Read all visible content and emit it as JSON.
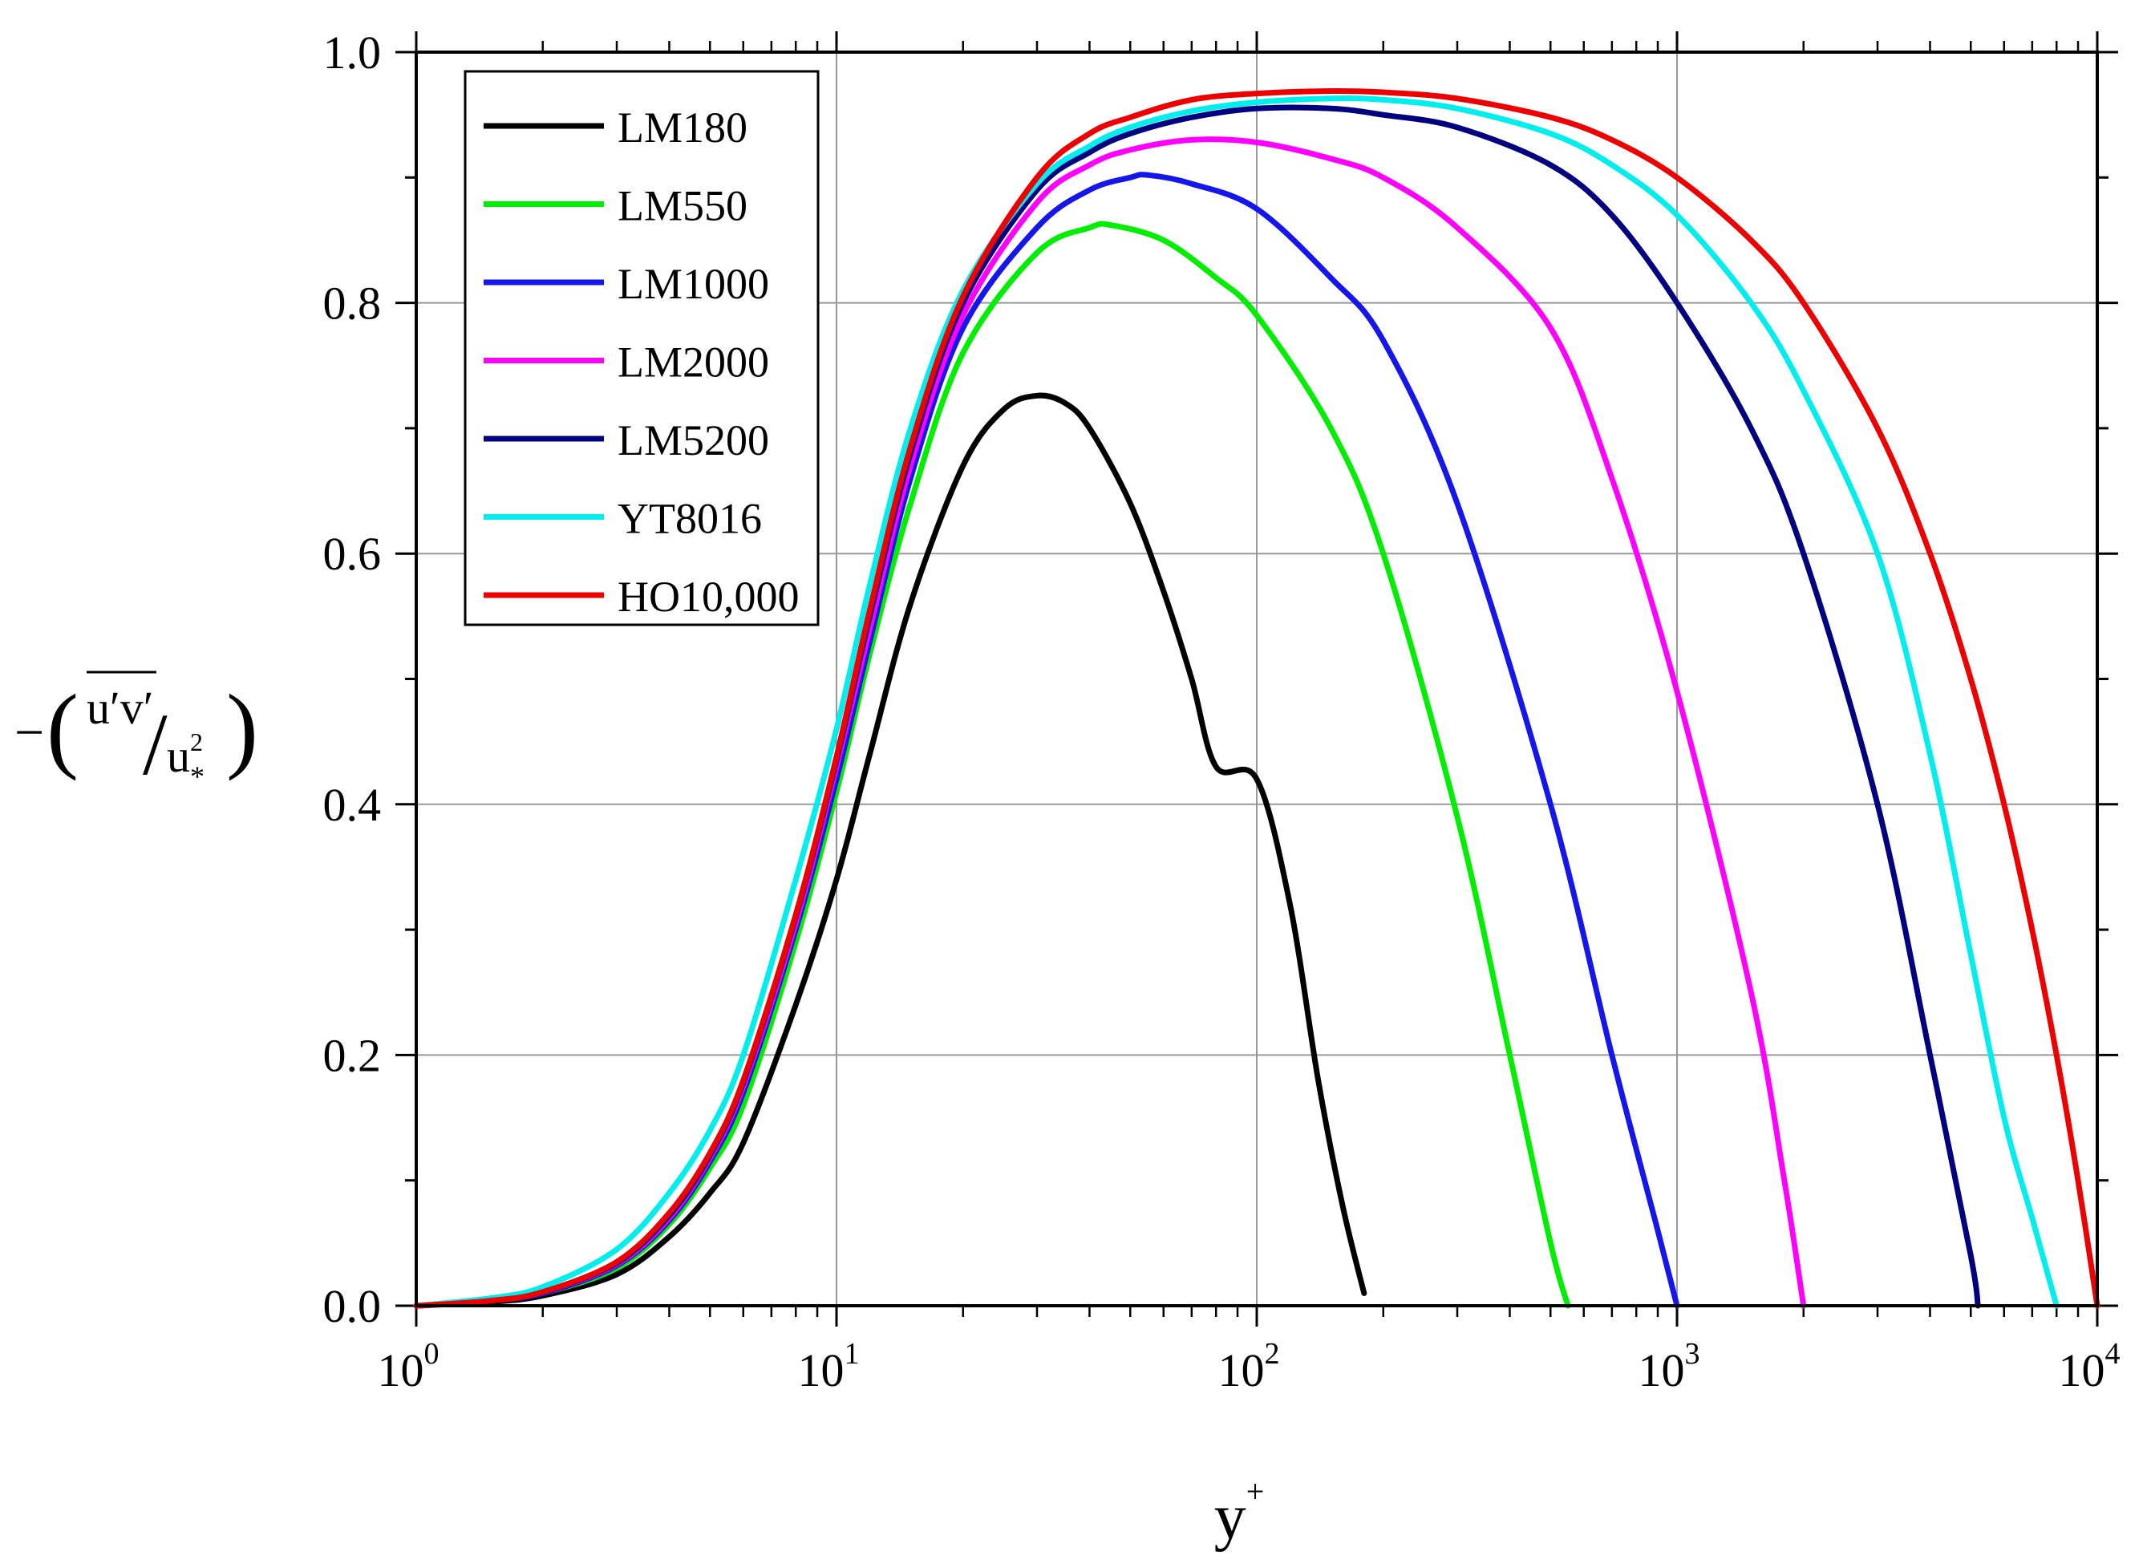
{
  "chart_data": {
    "type": "line",
    "title": "",
    "xlabel": "y",
    "xlabel_superscript": "+",
    "ylabel": {
      "prefix": "−",
      "numerator": "u′v′",
      "denominator": "u",
      "denominator_superscript": "2",
      "denominator_subscript": "*"
    },
    "xscale": "log",
    "xlim": [
      1,
      10000
    ],
    "ylim": [
      0,
      1.0
    ],
    "grid": true,
    "legend_position": "top-left",
    "x_ticks": [
      {
        "base": "10",
        "exp": "0"
      },
      {
        "base": "10",
        "exp": "1"
      },
      {
        "base": "10",
        "exp": "2"
      },
      {
        "base": "10",
        "exp": "3"
      },
      {
        "base": "10",
        "exp": "4"
      }
    ],
    "y_ticks": [
      "0.0",
      "0.2",
      "0.4",
      "0.6",
      "0.8",
      "1.0"
    ],
    "series": [
      {
        "name": "LM180",
        "color": "#000000",
        "x": [
          1,
          1.5,
          2,
          3,
          4,
          5,
          6,
          8,
          10,
          12,
          15,
          20,
          25,
          30,
          35,
          40,
          50,
          60,
          70,
          80,
          100,
          120,
          140,
          160,
          180
        ],
        "y": [
          0.0,
          0.003,
          0.008,
          0.025,
          0.055,
          0.09,
          0.13,
          0.24,
          0.34,
          0.44,
          0.56,
          0.67,
          0.715,
          0.726,
          0.72,
          0.7,
          0.64,
          0.57,
          0.5,
          0.43,
          0.42,
          0.32,
          0.18,
          0.08,
          0.01
        ]
      },
      {
        "name": "LM550",
        "color": "#00ee00",
        "x": [
          1,
          1.5,
          2,
          3,
          4,
          5,
          6,
          8,
          10,
          12,
          15,
          20,
          30,
          40,
          45,
          60,
          80,
          100,
          150,
          200,
          300,
          400,
          500,
          550
        ],
        "y": [
          0.0,
          0.004,
          0.01,
          0.03,
          0.065,
          0.11,
          0.16,
          0.29,
          0.41,
          0.52,
          0.64,
          0.76,
          0.84,
          0.86,
          0.862,
          0.85,
          0.82,
          0.79,
          0.7,
          0.6,
          0.39,
          0.2,
          0.05,
          0.0
        ]
      },
      {
        "name": "LM1000",
        "color": "#1515ee",
        "x": [
          1,
          1.5,
          2,
          3,
          4,
          5,
          6,
          8,
          10,
          12,
          15,
          20,
          30,
          40,
          50,
          55,
          70,
          100,
          150,
          200,
          300,
          500,
          700,
          900,
          1000
        ],
        "y": [
          0.0,
          0.004,
          0.01,
          0.032,
          0.068,
          0.115,
          0.17,
          0.3,
          0.42,
          0.53,
          0.66,
          0.78,
          0.86,
          0.89,
          0.9,
          0.902,
          0.895,
          0.875,
          0.82,
          0.77,
          0.64,
          0.4,
          0.2,
          0.06,
          0.0
        ]
      },
      {
        "name": "LM2000",
        "color": "#ff00ff",
        "x": [
          1,
          1.5,
          2,
          3,
          4,
          5,
          6,
          8,
          10,
          12,
          15,
          20,
          30,
          40,
          50,
          70,
          100,
          150,
          200,
          300,
          500,
          700,
          1000,
          1500,
          1800,
          2000
        ],
        "y": [
          0.0,
          0.004,
          0.011,
          0.033,
          0.07,
          0.118,
          0.175,
          0.305,
          0.43,
          0.54,
          0.67,
          0.79,
          0.88,
          0.91,
          0.922,
          0.93,
          0.928,
          0.915,
          0.9,
          0.86,
          0.78,
          0.66,
          0.49,
          0.25,
          0.1,
          0.0
        ]
      },
      {
        "name": "LM5200",
        "color": "#000080",
        "x": [
          1,
          1.5,
          2,
          3,
          4,
          5,
          6,
          8,
          10,
          12,
          15,
          20,
          30,
          40,
          50,
          70,
          100,
          150,
          200,
          300,
          500,
          700,
          1000,
          1500,
          2000,
          3000,
          4000,
          5000,
          5200
        ],
        "y": [
          0.0,
          0.004,
          0.011,
          0.034,
          0.072,
          0.12,
          0.178,
          0.31,
          0.435,
          0.55,
          0.68,
          0.8,
          0.89,
          0.92,
          0.935,
          0.948,
          0.955,
          0.955,
          0.95,
          0.94,
          0.91,
          0.87,
          0.8,
          0.7,
          0.6,
          0.4,
          0.2,
          0.04,
          0.0
        ]
      },
      {
        "name": "YT8016",
        "color": "#00eeee",
        "x": [
          1,
          1.5,
          2,
          3,
          4,
          5,
          6,
          8,
          10,
          12,
          15,
          20,
          30,
          40,
          50,
          70,
          100,
          150,
          200,
          300,
          500,
          700,
          1000,
          1500,
          2000,
          3000,
          4000,
          5000,
          6000,
          7000,
          8000
        ],
        "y": [
          0.0,
          0.006,
          0.015,
          0.045,
          0.09,
          0.14,
          0.2,
          0.34,
          0.46,
          0.575,
          0.7,
          0.81,
          0.895,
          0.925,
          0.94,
          0.953,
          0.96,
          0.963,
          0.962,
          0.955,
          0.935,
          0.91,
          0.87,
          0.8,
          0.73,
          0.6,
          0.44,
          0.28,
          0.15,
          0.07,
          0.0
        ]
      },
      {
        "name": "HO10,000",
        "color": "#ee0000",
        "x": [
          1,
          1.5,
          2,
          3,
          4,
          5,
          6,
          8,
          10,
          12,
          15,
          20,
          30,
          40,
          50,
          70,
          100,
          150,
          200,
          300,
          500,
          700,
          1000,
          1500,
          2000,
          3000,
          4000,
          5000,
          6000,
          7000,
          8000,
          9000,
          10000
        ],
        "y": [
          0.0,
          0.004,
          0.011,
          0.035,
          0.074,
          0.122,
          0.18,
          0.312,
          0.438,
          0.555,
          0.685,
          0.805,
          0.9,
          0.935,
          0.948,
          0.962,
          0.967,
          0.969,
          0.968,
          0.963,
          0.948,
          0.93,
          0.9,
          0.85,
          0.8,
          0.7,
          0.6,
          0.5,
          0.4,
          0.3,
          0.2,
          0.1,
          0.0
        ]
      }
    ]
  }
}
